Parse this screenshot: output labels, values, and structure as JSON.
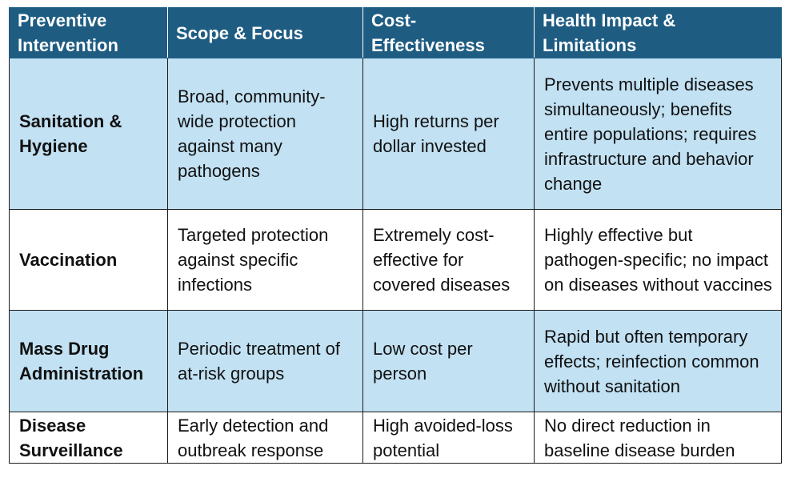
{
  "table": {
    "headers": [
      "Preventive Intervention",
      "Scope & Focus",
      "Cost-Effectiveness",
      "Health Impact & Limitations"
    ],
    "rows": [
      {
        "intervention": "Sanitation & Hygiene",
        "scope": "Broad, community-wide protection against many pathogens",
        "cost": "High returns per dollar invested",
        "impact": "Prevents multiple diseases simultaneously; benefits entire populations; requires infrastructure and behavior change"
      },
      {
        "intervention": "Vaccination",
        "scope": "Targeted protection against specific infections",
        "cost": "Extremely cost-effective for covered diseases",
        "impact": "Highly effective but pathogen-specific; no impact on diseases without vaccines"
      },
      {
        "intervention": "Mass Drug Administration",
        "scope": "Periodic treatment of at-risk groups",
        "cost": "Low cost per person",
        "impact": "Rapid but often temporary effects; reinfection common without sanitation"
      },
      {
        "intervention": "Disease Surveillance",
        "scope": "Early detection and outbreak response",
        "cost": "High avoided-loss potential",
        "impact": "No direct reduction in baseline disease burden"
      }
    ]
  },
  "colors": {
    "header_bg": "#1e5c82",
    "header_text": "#ffffff",
    "shaded_row": "#c2e1f3",
    "plain_row": "#ffffff",
    "border": "#1a1a1a"
  }
}
